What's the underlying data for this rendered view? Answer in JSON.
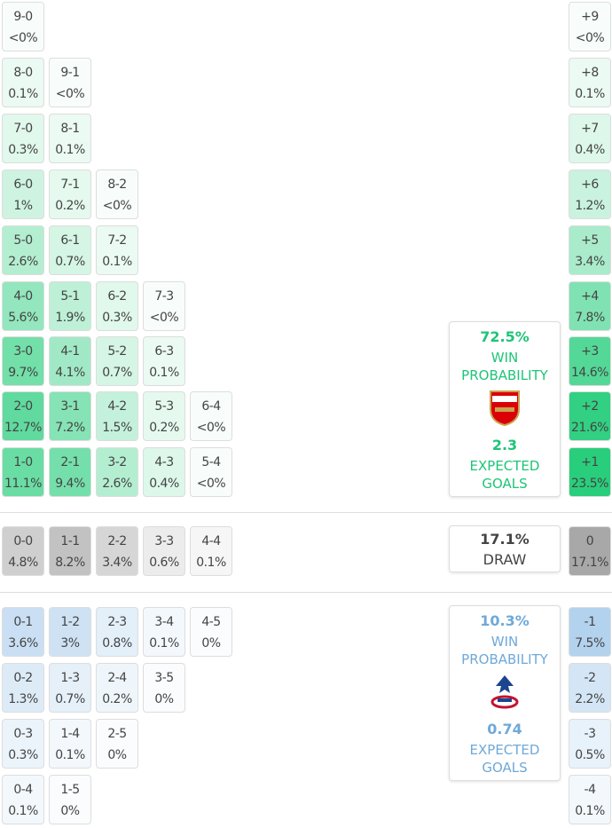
{
  "home": {
    "rows": [
      {
        "cells": [
          {
            "score": "9-0",
            "prob": "<0%"
          }
        ],
        "margin": {
          "label": "+9",
          "prob": "<0%"
        }
      },
      {
        "cells": [
          {
            "score": "8-0",
            "prob": "0.1%"
          },
          {
            "score": "9-1",
            "prob": "<0%"
          }
        ],
        "margin": {
          "label": "+8",
          "prob": "0.1%"
        }
      },
      {
        "cells": [
          {
            "score": "7-0",
            "prob": "0.3%"
          },
          {
            "score": "8-1",
            "prob": "0.1%"
          }
        ],
        "margin": {
          "label": "+7",
          "prob": "0.4%"
        }
      },
      {
        "cells": [
          {
            "score": "6-0",
            "prob": "1%"
          },
          {
            "score": "7-1",
            "prob": "0.2%"
          },
          {
            "score": "8-2",
            "prob": "<0%"
          }
        ],
        "margin": {
          "label": "+6",
          "prob": "1.2%"
        }
      },
      {
        "cells": [
          {
            "score": "5-0",
            "prob": "2.6%"
          },
          {
            "score": "6-1",
            "prob": "0.7%"
          },
          {
            "score": "7-2",
            "prob": "0.1%"
          }
        ],
        "margin": {
          "label": "+5",
          "prob": "3.4%"
        }
      },
      {
        "cells": [
          {
            "score": "4-0",
            "prob": "5.6%"
          },
          {
            "score": "5-1",
            "prob": "1.9%"
          },
          {
            "score": "6-2",
            "prob": "0.3%"
          },
          {
            "score": "7-3",
            "prob": "<0%"
          }
        ],
        "margin": {
          "label": "+4",
          "prob": "7.8%"
        }
      },
      {
        "cells": [
          {
            "score": "3-0",
            "prob": "9.7%"
          },
          {
            "score": "4-1",
            "prob": "4.1%"
          },
          {
            "score": "5-2",
            "prob": "0.7%"
          },
          {
            "score": "6-3",
            "prob": "0.1%"
          }
        ],
        "margin": {
          "label": "+3",
          "prob": "14.6%"
        }
      },
      {
        "cells": [
          {
            "score": "2-0",
            "prob": "12.7%"
          },
          {
            "score": "3-1",
            "prob": "7.2%"
          },
          {
            "score": "4-2",
            "prob": "1.5%"
          },
          {
            "score": "5-3",
            "prob": "0.2%"
          },
          {
            "score": "6-4",
            "prob": "<0%"
          }
        ],
        "margin": {
          "label": "+2",
          "prob": "21.6%"
        }
      },
      {
        "cells": [
          {
            "score": "1-0",
            "prob": "11.1%"
          },
          {
            "score": "2-1",
            "prob": "9.4%"
          },
          {
            "score": "3-2",
            "prob": "2.6%"
          },
          {
            "score": "4-3",
            "prob": "0.4%"
          },
          {
            "score": "5-4",
            "prob": "<0%"
          }
        ],
        "margin": {
          "label": "+1",
          "prob": "23.5%"
        }
      }
    ],
    "summary": {
      "win_prob": "72.5%",
      "win_label": "WIN PROBABILITY",
      "xg": "2.3",
      "xg_label": "EXPECTED GOALS"
    }
  },
  "draw": {
    "rows": [
      {
        "cells": [
          {
            "score": "0-0",
            "prob": "4.8%"
          },
          {
            "score": "1-1",
            "prob": "8.2%"
          },
          {
            "score": "2-2",
            "prob": "3.4%"
          },
          {
            "score": "3-3",
            "prob": "0.6%"
          },
          {
            "score": "4-4",
            "prob": "0.1%"
          }
        ],
        "margin": {
          "label": "0",
          "prob": "17.1%"
        }
      }
    ],
    "summary": {
      "prob": "17.1%",
      "label": "DRAW"
    }
  },
  "away": {
    "rows": [
      {
        "cells": [
          {
            "score": "0-1",
            "prob": "3.6%"
          },
          {
            "score": "1-2",
            "prob": "3%"
          },
          {
            "score": "2-3",
            "prob": "0.8%"
          },
          {
            "score": "3-4",
            "prob": "0.1%"
          },
          {
            "score": "4-5",
            "prob": "0%"
          }
        ],
        "margin": {
          "label": "-1",
          "prob": "7.5%"
        }
      },
      {
        "cells": [
          {
            "score": "0-2",
            "prob": "1.3%"
          },
          {
            "score": "1-3",
            "prob": "0.7%"
          },
          {
            "score": "2-4",
            "prob": "0.2%"
          },
          {
            "score": "3-5",
            "prob": "0%"
          }
        ],
        "margin": {
          "label": "-2",
          "prob": "2.2%"
        }
      },
      {
        "cells": [
          {
            "score": "0-3",
            "prob": "0.3%"
          },
          {
            "score": "1-4",
            "prob": "0.1%"
          },
          {
            "score": "2-5",
            "prob": "0%"
          }
        ],
        "margin": {
          "label": "-3",
          "prob": "0.5%"
        }
      },
      {
        "cells": [
          {
            "score": "0-4",
            "prob": "0.1%"
          },
          {
            "score": "1-5",
            "prob": "0%"
          }
        ],
        "margin": {
          "label": "-4",
          "prob": "0.1%"
        }
      }
    ],
    "summary": {
      "win_prob": "10.3%",
      "win_label": "WIN PROBABILITY",
      "xg": "0.74",
      "xg_label": "EXPECTED GOALS"
    }
  }
}
